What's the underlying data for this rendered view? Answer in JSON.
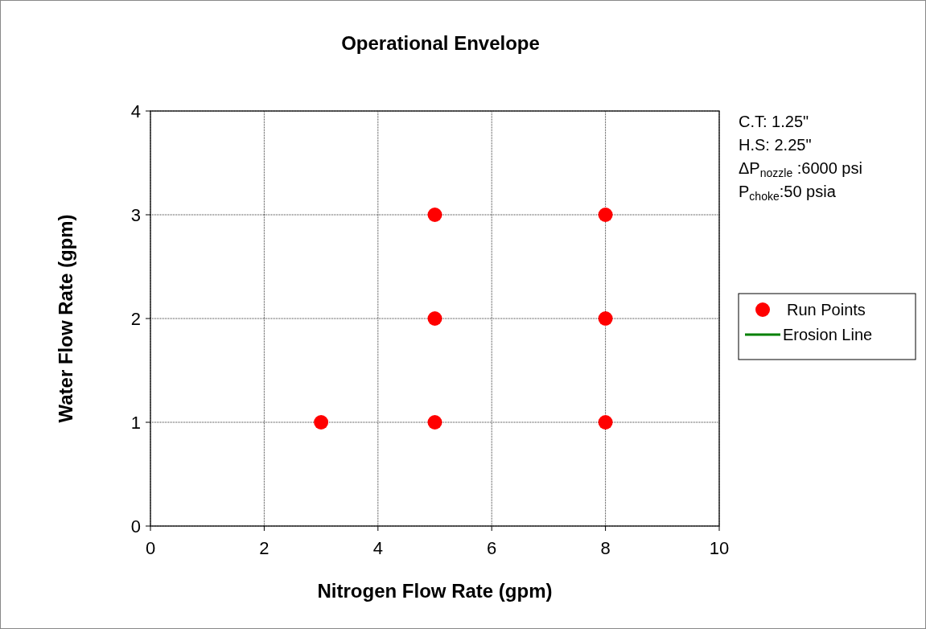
{
  "chart_data": {
    "type": "scatter",
    "title": "Operational Envelope",
    "xlabel": "Nitrogen Flow Rate (gpm)",
    "ylabel": "Water Flow Rate (gpm)",
    "series": [
      {
        "name": "Run Points",
        "color": "#ff0000",
        "marker": "circle",
        "x": [
          3,
          5,
          5,
          5,
          8,
          8,
          8
        ],
        "values": [
          1,
          1,
          2,
          3,
          1,
          2,
          3
        ]
      },
      {
        "name": "Erosion Line",
        "type": "line",
        "color": "#008000",
        "marker": "none"
      }
    ],
    "xlim": [
      0,
      10
    ],
    "xticks": [
      0,
      2,
      4,
      6,
      8,
      10
    ],
    "ylim": [
      0,
      4
    ],
    "yticks": [
      0,
      1,
      2,
      3,
      4
    ],
    "grid": true,
    "legend": "right",
    "annotations": [
      "C.T: 1.25\"",
      "H.S: 2.25\"",
      "ΔP$_{nozzle}$ :6000 psi",
      "P$_{choke}$:50 psia"
    ]
  }
}
